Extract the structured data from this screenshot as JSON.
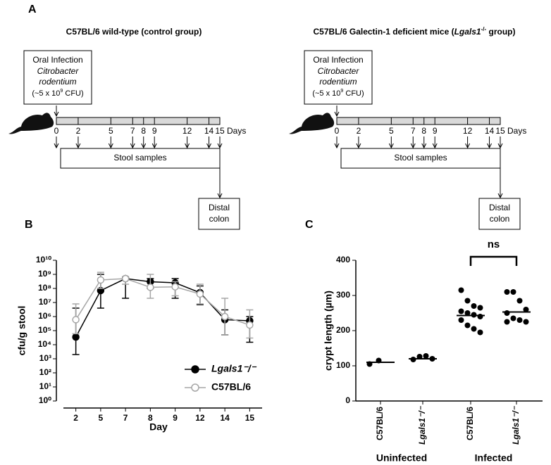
{
  "panel_labels": [
    "A",
    "B",
    "C"
  ],
  "diagram": {
    "groups": [
      {
        "title_parts": [
          "C57BL/6 wild-type (control group)"
        ]
      },
      {
        "title_parts": [
          "C57BL/6 Galectin-1 deficient mice  (",
          "Lgals1",
          "-/-",
          " group)"
        ]
      }
    ],
    "infection_box": [
      "Oral Infection",
      "Citrobacter",
      "rodentium",
      "(~5 x 10",
      "9",
      " CFU)"
    ],
    "days": [
      0,
      2,
      5,
      7,
      8,
      9,
      12,
      14,
      15
    ],
    "days_label": "Days",
    "stool_label": "Stool samples",
    "distal_label": [
      "Distal",
      "colon"
    ]
  },
  "chart_data": [
    {
      "type": "line",
      "log_scale": true,
      "ylabel": "cfu/g stool",
      "xlabel": "Day",
      "categories": [
        "2",
        "5",
        "7",
        "8",
        "9",
        "12",
        "14",
        "15"
      ],
      "ylim": [
        1,
        10000000000
      ],
      "yticks": [
        {
          "value": 1,
          "label": "10⁰"
        },
        {
          "value": 10,
          "label": "10¹"
        },
        {
          "value": 100,
          "label": "10²"
        },
        {
          "value": 1000,
          "label": "10³"
        },
        {
          "value": 10000,
          "label": "10⁴"
        },
        {
          "value": 100000,
          "label": "10⁵"
        },
        {
          "value": 1000000,
          "label": "10⁶"
        },
        {
          "value": 10000000,
          "label": "10⁷"
        },
        {
          "value": 100000000,
          "label": "10⁸"
        },
        {
          "value": 1000000000,
          "label": "10⁹"
        },
        {
          "value": 10000000000,
          "label": "10¹⁰"
        }
      ],
      "legend": "lower right",
      "series": [
        {
          "name": "Lgals1⁻/⁻",
          "color": "#000000",
          "marker": "filled",
          "values": [
            35000,
            70000000,
            500000000,
            300000000,
            250000000,
            50000000,
            600000,
            500000
          ],
          "error_low": [
            2000,
            4000000,
            20000000,
            100000000,
            20000000,
            7000000,
            50000,
            15000
          ],
          "error_high": [
            4000000,
            1000000000,
            600000000,
            500000000,
            500000000,
            150000000,
            3000000,
            1000000
          ]
        },
        {
          "name": "C57BL/6",
          "color": "#a6a6a6",
          "marker": "open",
          "values": [
            600000,
            400000000,
            500000000,
            120000000,
            130000000,
            40000000,
            1000000,
            250000
          ],
          "error_low": [
            60000,
            100000000,
            200000000,
            20000000,
            30000000,
            8000000,
            50000,
            30000
          ],
          "error_high": [
            8000000,
            1400000000,
            700000000,
            1000000000,
            300000000,
            200000000,
            20000000,
            3000000
          ]
        }
      ]
    },
    {
      "type": "scatter",
      "ylabel": "crypt length (µm)",
      "categories": [
        "C57BL/6",
        "Lgals1⁻/⁻",
        "C57BL/6",
        "Lgals1⁻/⁻"
      ],
      "group_labels": [
        "Uninfected",
        "Infected"
      ],
      "ylim": [
        0,
        400
      ],
      "yticks": [
        0,
        100,
        200,
        300,
        400
      ],
      "color": "#000000",
      "points": [
        [
          105,
          115
        ],
        [
          118,
          126,
          128,
          120
        ],
        [
          315,
          285,
          270,
          265,
          255,
          250,
          245,
          240,
          230,
          215,
          205,
          195
        ],
        [
          310,
          310,
          285,
          260,
          250,
          235,
          230,
          225,
          225
        ]
      ],
      "means": [
        110,
        120,
        243,
        253
      ],
      "annotation": "ns"
    }
  ]
}
